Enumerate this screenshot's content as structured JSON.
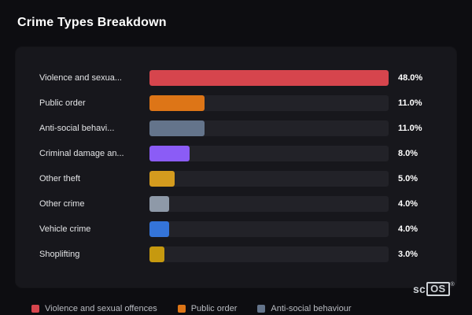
{
  "page": {
    "title": "Crime Types Breakdown"
  },
  "chart_data": {
    "type": "bar",
    "orientation": "horizontal",
    "title": "Crime Types Breakdown",
    "categories": [
      "Violence and sexua...",
      "Public order",
      "Anti-social behavi...",
      "Criminal damage an...",
      "Other theft",
      "Other crime",
      "Vehicle crime",
      "Shoplifting"
    ],
    "values": [
      48.0,
      11.0,
      11.0,
      8.0,
      5.0,
      4.0,
      4.0,
      3.0
    ],
    "value_labels": [
      "48.0%",
      "11.0%",
      "11.0%",
      "8.0%",
      "5.0%",
      "4.0%",
      "4.0%",
      "3.0%"
    ],
    "bar_colors": [
      "#d6454d",
      "#dd7517",
      "#64748b",
      "#8b5cf6",
      "#d49b1e",
      "#8e99a8",
      "#3474d9",
      "#c6990f"
    ],
    "xmax": 48,
    "grid": false,
    "legend_position": "bottom",
    "legend": [
      {
        "label": "Violence and sexual offences",
        "color": "#d6454d"
      },
      {
        "label": "Public order",
        "color": "#dd7517"
      },
      {
        "label": "Anti-social behaviour",
        "color": "#64748b"
      }
    ]
  },
  "branding": {
    "prefix": "sc",
    "box": "OS",
    "reg": "®"
  },
  "colors": {
    "page_bg": "#0d0d11",
    "card_bg": "#17171c",
    "track_bg": "#222228",
    "text_primary": "#ffffff",
    "text_secondary": "#e3e4e6",
    "legend_text": "#b9bcc2"
  }
}
